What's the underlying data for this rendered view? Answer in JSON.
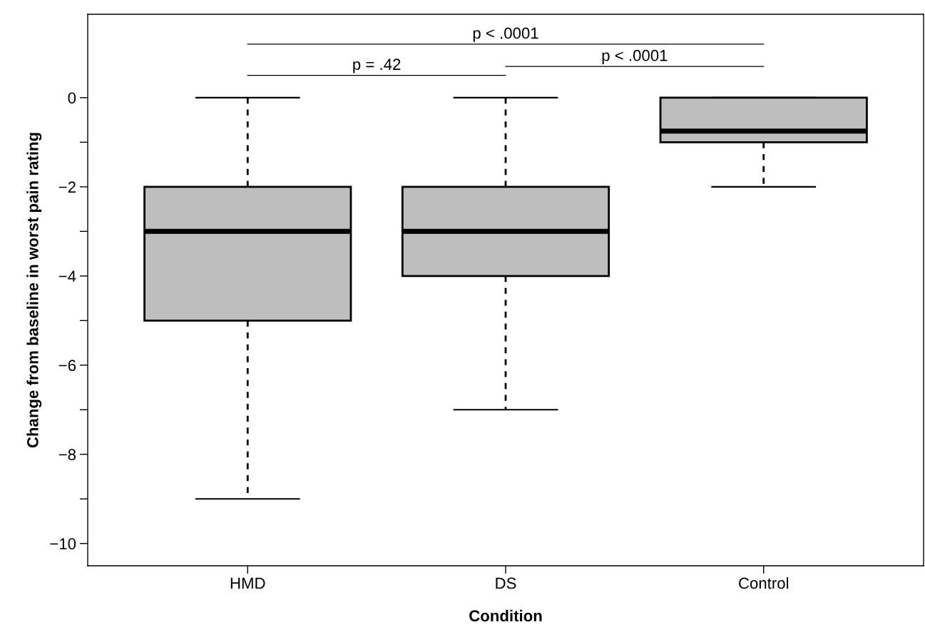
{
  "chart_data": {
    "type": "box",
    "xlabel": "Condition",
    "ylabel": "Change from baseline in worst pain rating",
    "categories": [
      "HMD",
      "DS",
      "Control"
    ],
    "boxes": [
      {
        "low": -9,
        "q1": -5,
        "median": -3,
        "q3": -2,
        "high": 0
      },
      {
        "low": -7,
        "q1": -4,
        "median": -3,
        "q3": -2,
        "high": 0
      },
      {
        "low": -2,
        "q1": -1,
        "median": -0.75,
        "q3": 0,
        "high": 0
      }
    ],
    "color": "#bebebe",
    "ylim": [
      -10.5,
      1.87
    ],
    "yticks": [
      {
        "value": 0,
        "label": "0"
      },
      {
        "value": -1,
        "label": null
      },
      {
        "value": -2,
        "label": "−2"
      },
      {
        "value": -3,
        "label": null
      },
      {
        "value": -4,
        "label": "−4"
      },
      {
        "value": -5,
        "label": null
      },
      {
        "value": -6,
        "label": "−6"
      },
      {
        "value": -7,
        "label": null
      },
      {
        "value": -8,
        "label": "−8"
      },
      {
        "value": -9,
        "label": null
      },
      {
        "value": -10,
        "label": "−10"
      }
    ],
    "annotations": [
      "p < .0001",
      "p = .42",
      "p < .0001"
    ],
    "grid": false
  }
}
